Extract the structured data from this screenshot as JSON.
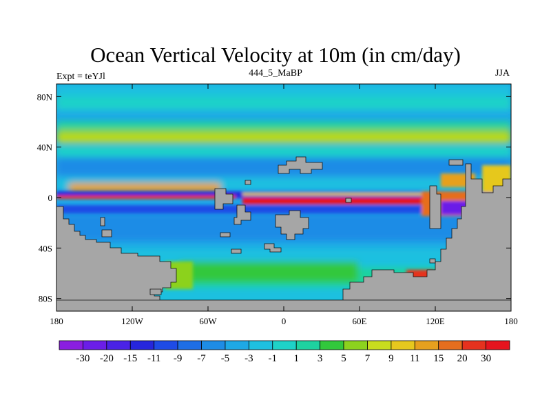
{
  "title": "Ocean Vertical Velocity at 10m (in cm/day)",
  "subtitle_left": "Expt = teYJl",
  "subtitle_center": "444_5_MaBP",
  "subtitle_right": "JJA",
  "chart_data": {
    "type": "heatmap",
    "title": "Ocean Vertical Velocity at 10m (in cm/day)",
    "x_ticks": [
      "180",
      "120W",
      "60W",
      "0",
      "60E",
      "120E",
      "180"
    ],
    "x_tick_values": [
      -180,
      -120,
      -60,
      0,
      60,
      120,
      180
    ],
    "y_ticks": [
      "80N",
      "40N",
      "0",
      "40S",
      "80S"
    ],
    "y_tick_values": [
      80,
      40,
      0,
      -40,
      -80
    ],
    "xlim": [
      -180,
      180
    ],
    "ylim": [
      -90,
      90
    ],
    "land_color": "#a6a6a6",
    "colorbar": {
      "labels": [
        "-30",
        "-20",
        "-15",
        "-11",
        "-9",
        "-7",
        "-5",
        "-3",
        "-1",
        "1",
        "3",
        "5",
        "7",
        "9",
        "11",
        "15",
        "20",
        "30"
      ],
      "colors": [
        "#8a1ee0",
        "#6b1ee8",
        "#4a22e6",
        "#2626dc",
        "#1e4be6",
        "#1e6ee6",
        "#1e8ce6",
        "#1ea8e6",
        "#1ec0e0",
        "#1ed2c8",
        "#1ed2a0",
        "#32c83c",
        "#8cd21e",
        "#c8dc1e",
        "#e6c81e",
        "#e6a01e",
        "#e66e1e",
        "#e6321e",
        "#e6141e"
      ]
    }
  }
}
